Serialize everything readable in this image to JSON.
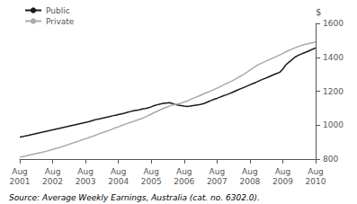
{
  "chart_data": {
    "type": "line",
    "y_label": "$",
    "annotations": [
      "Source: Average Weekly Earnings, Australia (cat. no. 6302.0)."
    ],
    "categories": [
      "Aug\n2001",
      null,
      null,
      null,
      null,
      null,
      null,
      null,
      null,
      null,
      null,
      "Aug\n2002",
      null,
      null,
      null,
      null,
      null,
      null,
      null,
      null,
      null,
      null,
      "Aug\n2003",
      null,
      null,
      null,
      null,
      null,
      null,
      null,
      null,
      null,
      null,
      "Aug\n2004",
      null,
      null,
      null,
      null,
      null,
      null,
      null,
      null,
      null,
      null,
      "Aug\n2005",
      null,
      null,
      null,
      null,
      null,
      null,
      null,
      null,
      null,
      null,
      "Aug\n2006",
      null,
      null,
      null,
      null,
      null,
      null,
      null,
      null,
      null,
      null,
      "Aug\n2007",
      null,
      null,
      null,
      null,
      null,
      null,
      null,
      null,
      null,
      null,
      "Aug\n2008",
      null,
      null,
      null,
      null,
      null,
      null,
      null,
      null,
      null,
      null,
      "Aug\n2009",
      null,
      null,
      null,
      null,
      null,
      null,
      null,
      null,
      null,
      null,
      "Aug\n2010"
    ],
    "series": [
      {
        "name": "Public",
        "color": "#1a1a1a",
        "values": [
          930,
          933,
          937,
          940,
          944,
          948,
          952,
          956,
          960,
          964,
          968,
          972,
          976,
          980,
          984,
          988,
          992,
          996,
          1000,
          1004,
          1008,
          1012,
          1016,
          1020,
          1025,
          1030,
          1035,
          1038,
          1042,
          1046,
          1050,
          1055,
          1058,
          1062,
          1066,
          1070,
          1075,
          1080,
          1085,
          1088,
          1090,
          1095,
          1098,
          1102,
          1108,
          1115,
          1120,
          1125,
          1128,
          1130,
          1132,
          1128,
          1122,
          1118,
          1115,
          1112,
          1110,
          1112,
          1115,
          1118,
          1120,
          1125,
          1130,
          1138,
          1145,
          1152,
          1158,
          1165,
          1172,
          1178,
          1185,
          1192,
          1200,
          1208,
          1215,
          1222,
          1230,
          1238,
          1245,
          1252,
          1260,
          1268,
          1275,
          1282,
          1290,
          1298,
          1305,
          1312,
          1330,
          1355,
          1370,
          1385,
          1400,
          1410,
          1418,
          1425,
          1432,
          1440,
          1448,
          1455
        ]
      },
      {
        "name": "Private",
        "color": "#aaaaaa",
        "values": [
          812,
          815,
          818,
          822,
          826,
          830,
          834,
          838,
          842,
          847,
          852,
          857,
          862,
          867,
          872,
          878,
          884,
          890,
          896,
          902,
          908,
          914,
          920,
          926,
          932,
          938,
          945,
          952,
          958,
          964,
          970,
          977,
          984,
          990,
          997,
          1004,
          1010,
          1016,
          1022,
          1028,
          1034,
          1040,
          1048,
          1056,
          1065,
          1074,
          1082,
          1090,
          1098,
          1105,
          1112,
          1118,
          1122,
          1126,
          1130,
          1136,
          1142,
          1150,
          1158,
          1165,
          1172,
          1180,
          1188,
          1195,
          1202,
          1210,
          1218,
          1226,
          1235,
          1244,
          1252,
          1260,
          1270,
          1280,
          1290,
          1300,
          1312,
          1324,
          1336,
          1348,
          1358,
          1366,
          1374,
          1382,
          1390,
          1398,
          1406,
          1414,
          1422,
          1432,
          1440,
          1448,
          1455,
          1462,
          1468,
          1474,
          1478,
          1482,
          1486,
          1490
        ]
      }
    ],
    "ylim": [
      800,
      1600
    ],
    "yticks": [
      800,
      1000,
      1200,
      1400,
      1600
    ],
    "grid": false,
    "legend": "upper left"
  }
}
